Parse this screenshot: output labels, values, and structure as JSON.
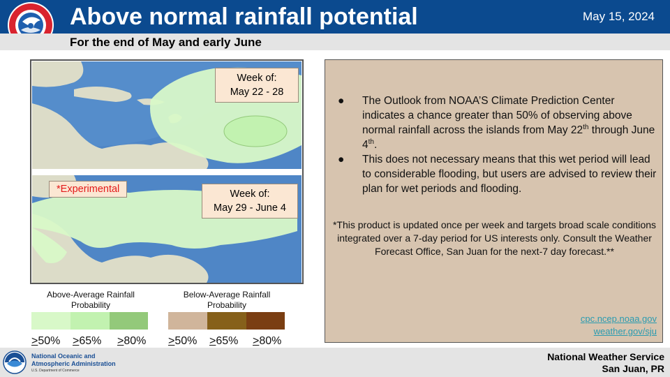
{
  "header": {
    "title": "Above normal rainfall potential",
    "date": "May 15, 2024",
    "subtitle": "For the end of May and early June"
  },
  "maps": {
    "top": {
      "week_line1": "Week of:",
      "week_line2": "May 22 - 28"
    },
    "bottom": {
      "experimental": "*Experimental",
      "week_line1": "Week of:",
      "week_line2": "May 29 - June 4"
    }
  },
  "legend": {
    "above": {
      "caption_line1": "Above-Average Rainfall",
      "caption_line2": "Probability",
      "colors": [
        "#d8f8c8",
        "#c2f2b0",
        "#93c97a"
      ],
      "labels": [
        ">50%",
        ">65%",
        ">80%"
      ]
    },
    "below": {
      "caption_line1": "Below-Average Rainfall",
      "caption_line2": "Probability",
      "colors": [
        "#d0b59b",
        "#86601a",
        "#7a3e12"
      ],
      "labels": [
        ">50%",
        ">65%",
        ">80%"
      ]
    }
  },
  "text_panel": {
    "bullet_symbol": "●",
    "bullet1": {
      "part1": "The Outlook from NOAA’S Climate Prediction Center indicates a chance greater than 50% of observing above normal rainfall across the islands from May 22",
      "sup1": "th",
      "part2": " through June 4",
      "sup2": "th",
      "part3": "."
    },
    "bullet2": "This does not necessary means that this wet period will lead to considerable flooding, but users are advised to review their plan for wet periods and flooding.",
    "footnote": "*This product is updated once per week and targets broad scale conditions integrated over a 7-day period for US interests only. Consult the Weather Forecast Office, San Juan for the next-7 day forecast.**",
    "links": [
      "cpc.ncep.noaa.gov",
      "weather.gov/sju"
    ]
  },
  "footer": {
    "noaa_line1": "National Oceanic and",
    "noaa_line2": "Atmospheric Administration",
    "noaa_line3": "U.S. Department of Commerce",
    "office_line1": "National Weather Service",
    "office_line2": "San Juan, PR"
  },
  "colors": {
    "header": "#0b4a8f",
    "ocean": "#4f86c6",
    "land": "#dcdcc8",
    "above_50": "#d8f8c8",
    "panel": "#d7c4af"
  }
}
